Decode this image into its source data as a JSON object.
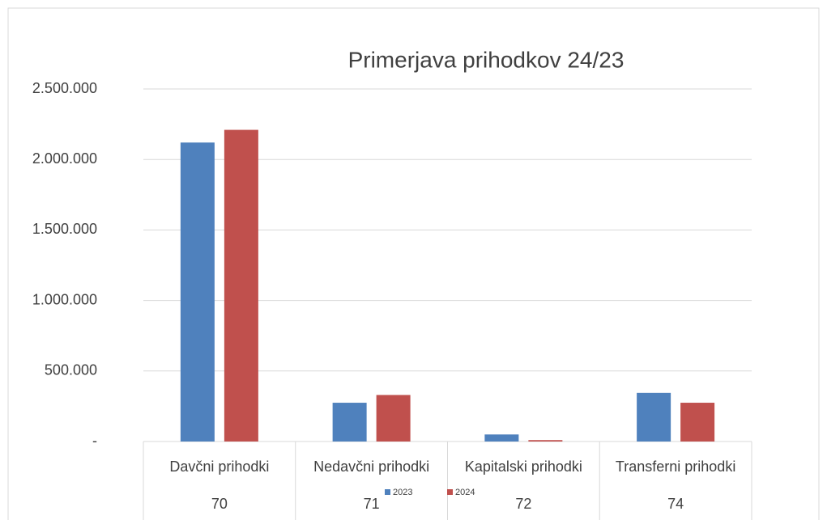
{
  "chart_data": {
    "type": "bar",
    "title": "Primerjava prihodkov 24/23",
    "categories": [
      "Davčni prihodki",
      "Nedavčni prihodki",
      "Kapitalski prihodki",
      "Transferni prihodki"
    ],
    "category_codes": [
      "70",
      "71",
      "72",
      "74"
    ],
    "series": [
      {
        "name": "2023",
        "color": "#4f81bd",
        "values": [
          2120000,
          275000,
          50000,
          345000
        ]
      },
      {
        "name": "2024",
        "color": "#c0504d",
        "values": [
          2210000,
          330000,
          10000,
          275000
        ]
      }
    ],
    "ylim": [
      0,
      2500000
    ],
    "yticks": [
      {
        "value": 0,
        "label": "-"
      },
      {
        "value": 500000,
        "label": "500.000"
      },
      {
        "value": 1000000,
        "label": "1.000.000"
      },
      {
        "value": 1500000,
        "label": "1.500.000"
      },
      {
        "value": 2000000,
        "label": "2.000.000"
      },
      {
        "value": 2500000,
        "label": "2.500.000"
      }
    ],
    "grid": true,
    "legend": "bottom"
  }
}
